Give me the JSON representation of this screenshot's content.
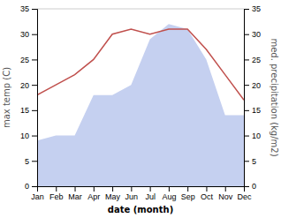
{
  "chart_data": {
    "type": "line",
    "categories": [
      "Jan",
      "Feb",
      "Mar",
      "Apr",
      "May",
      "Jun",
      "Jul",
      "Aug",
      "Sep",
      "Oct",
      "Nov",
      "Dec"
    ],
    "series": [
      {
        "type": "area",
        "color": "#c5d0f0",
        "axis": "y2",
        "values": [
          9,
          10,
          10,
          18,
          18,
          20,
          29,
          32,
          31,
          25,
          14,
          14
        ]
      },
      {
        "type": "line",
        "color": "#c0504d",
        "values": [
          18,
          20,
          22,
          25,
          30,
          31,
          30,
          31,
          31,
          27,
          22,
          17
        ]
      }
    ],
    "xlabel": "date (month)",
    "ylabel": "max temp (C)",
    "y2label": "med. precipitation (kg/m2)",
    "ylim": [
      0,
      35
    ],
    "yticks": [
      0,
      5,
      10,
      15,
      20,
      25,
      30,
      35
    ],
    "y2lim": [
      0,
      35
    ],
    "y2ticks": [
      0,
      5,
      10,
      15,
      20,
      25,
      30,
      35
    ],
    "grid": false
  }
}
